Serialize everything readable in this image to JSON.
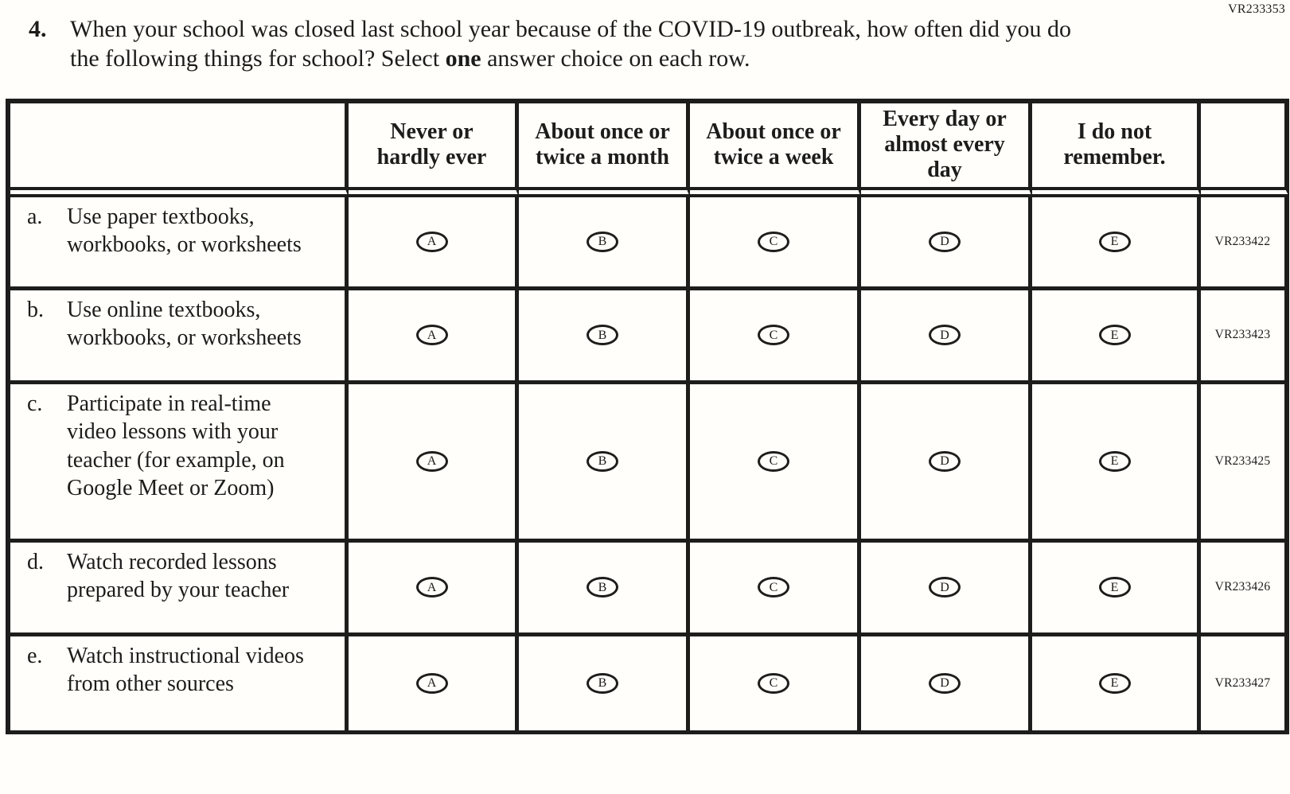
{
  "page": {
    "form_code": "VR233353"
  },
  "question": {
    "number": "4.",
    "text_before_bold": "When your school was closed last school year because of the COVID-19 outbreak, how often did you do the following things for school? Select ",
    "bold_word": "one",
    "text_after_bold": " answer choice on each row."
  },
  "table": {
    "columns": [
      "Never or hardly ever",
      "About once or twice a month",
      "About once or twice a week",
      "Every day or almost every day",
      "I do not remember."
    ],
    "choice_letters": [
      "A",
      "B",
      "C",
      "D",
      "E"
    ],
    "rows": [
      {
        "letter": "a.",
        "text": "Use paper textbooks, workbooks, or worksheets",
        "code": "VR233422"
      },
      {
        "letter": "b.",
        "text": "Use online textbooks, workbooks, or worksheets",
        "code": "VR233423"
      },
      {
        "letter": "c.",
        "text": "Participate in real-time video lessons with your teacher (for example, on Google Meet or Zoom)",
        "code": "VR233425"
      },
      {
        "letter": "d.",
        "text": "Watch recorded lessons prepared by your teacher",
        "code": "VR233426"
      },
      {
        "letter": "e.",
        "text": "Watch instructional videos from other sources",
        "code": "VR233427"
      }
    ]
  }
}
